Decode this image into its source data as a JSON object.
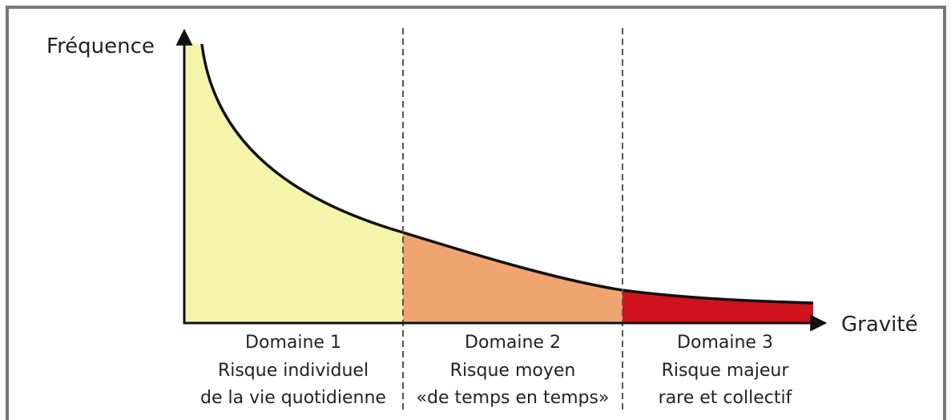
{
  "axes": {
    "y_label": "Fréquence",
    "x_label": "Gravité"
  },
  "domains": [
    {
      "lines": [
        "Domaine 1",
        "Risque individuel",
        "de la vie quotidienne"
      ]
    },
    {
      "lines": [
        "Domaine 2",
        "Risque moyen",
        "«de temps en temps»"
      ]
    },
    {
      "lines": [
        "Domaine 3",
        "Risque majeur",
        "rare et collectif"
      ]
    }
  ]
}
